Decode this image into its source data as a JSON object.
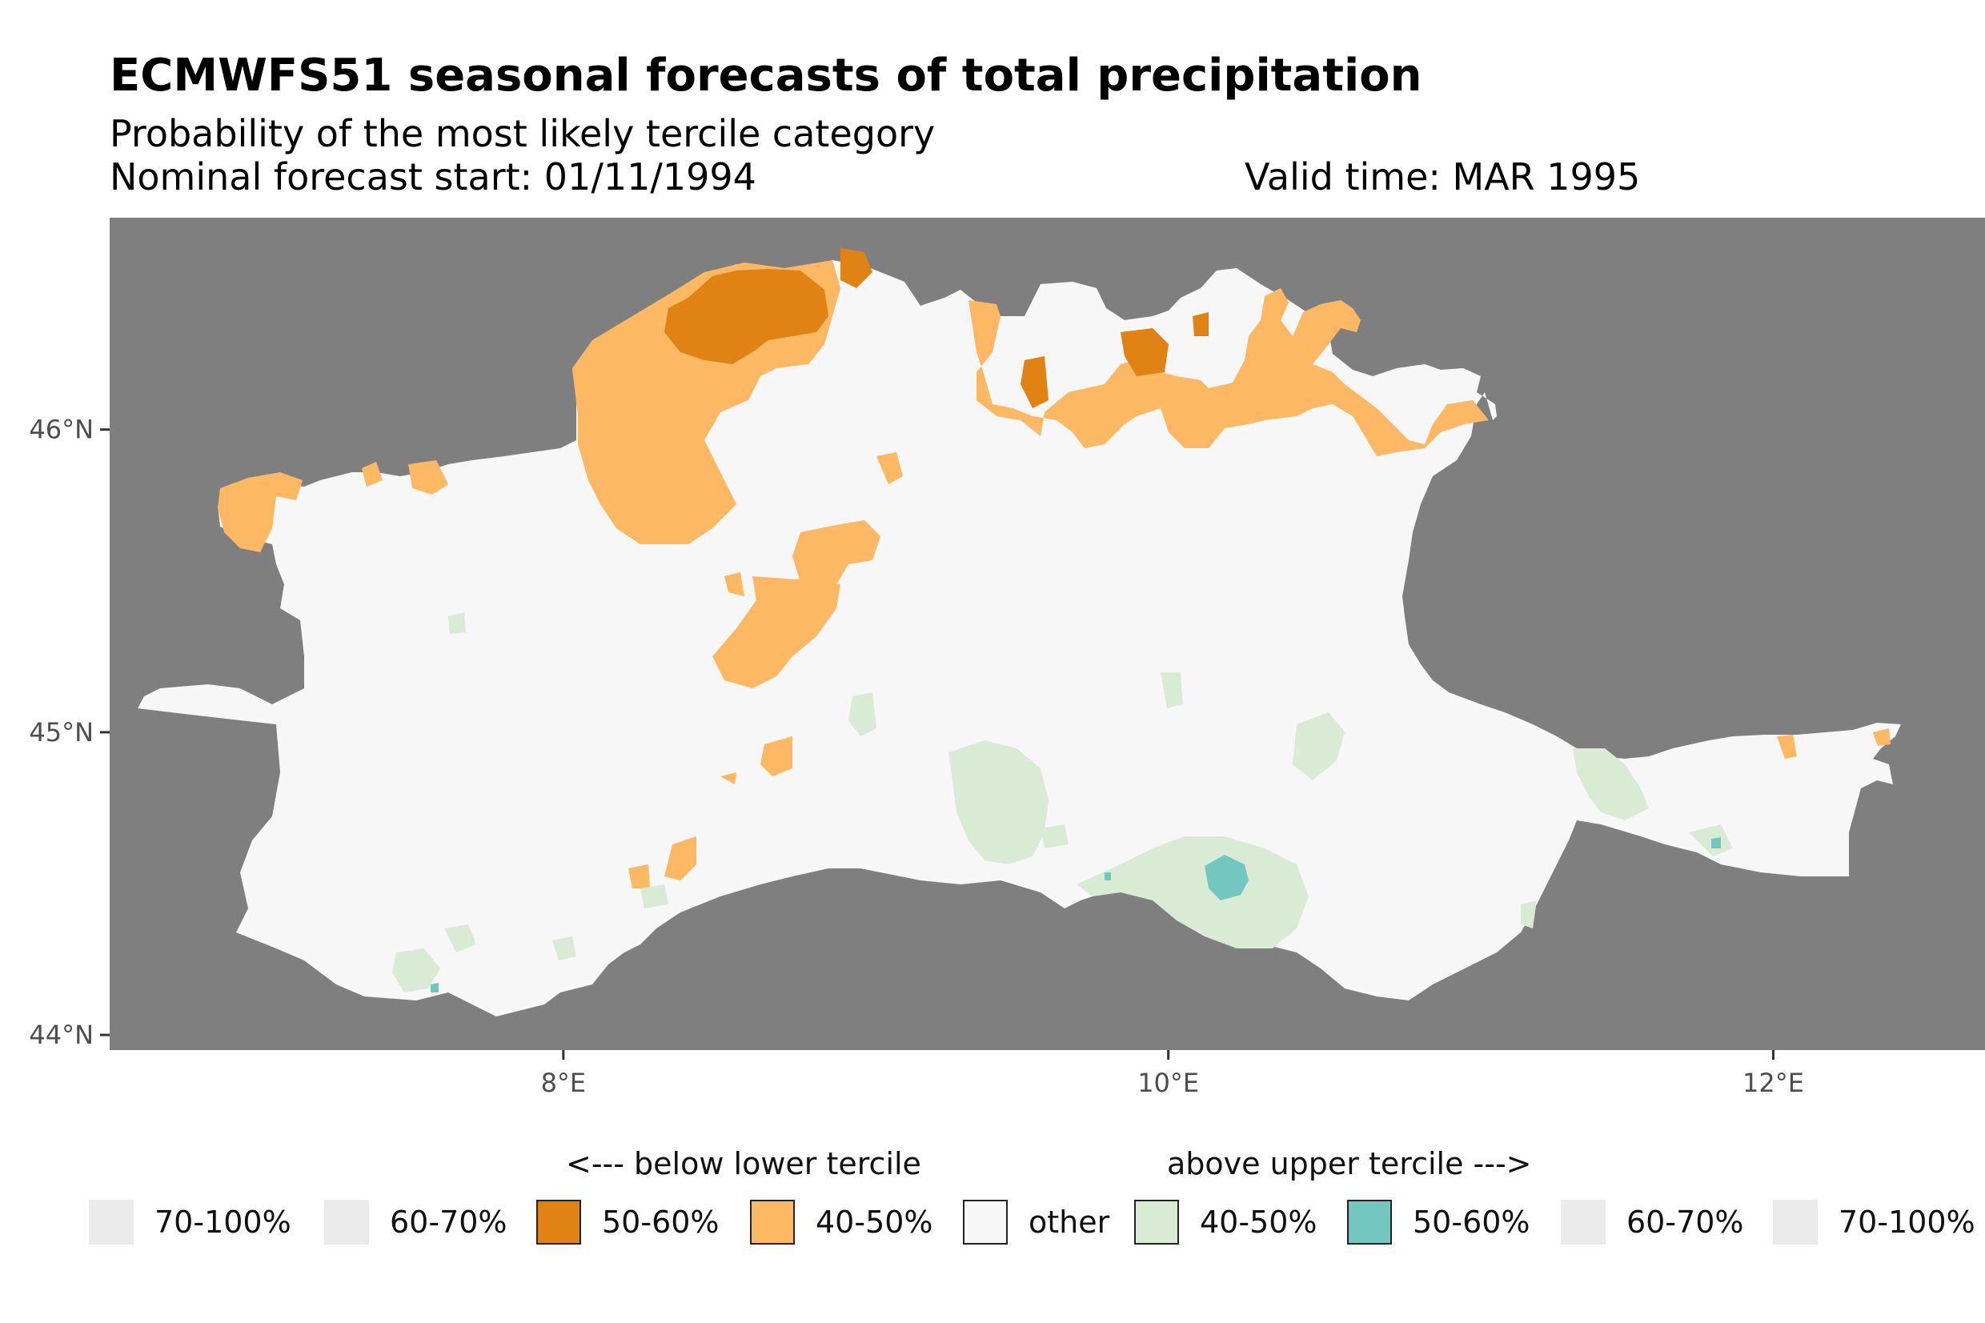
{
  "header": {
    "title": "ECMWFS51 seasonal forecasts of total precipitation",
    "subtitle": "Probability of the most likely tercile category",
    "forecast_start": "Nominal forecast start: 01/11/1994",
    "valid_time": "Valid time: MAR 1995"
  },
  "map": {
    "xlim": [
      6.5,
      12.7
    ],
    "ylim": [
      43.95,
      46.7
    ],
    "x_ticks": [
      "8°E",
      "10°E",
      "12°E"
    ],
    "y_ticks": [
      "46°N",
      "45°N",
      "44°N"
    ],
    "background_color": "#7f7f7f",
    "region_color": "#f7f7f7"
  },
  "legend": {
    "below_header": "<--- below lower tercile",
    "above_header": "above upper tercile --->",
    "items": [
      {
        "label": "70-100%",
        "color": "#ebebeb"
      },
      {
        "label": "60-70%",
        "color": "#ebebeb"
      },
      {
        "label": "50-60%",
        "color": "#e08214"
      },
      {
        "label": "40-50%",
        "color": "#fdb863"
      },
      {
        "label": "other",
        "color": "#f7f7f7"
      },
      {
        "label": "40-50%",
        "color": "#d9ead5"
      },
      {
        "label": "50-60%",
        "color": "#74c7c1"
      },
      {
        "label": "60-70%",
        "color": "#ebebeb"
      },
      {
        "label": "70-100%",
        "color": "#ebebeb"
      }
    ]
  }
}
